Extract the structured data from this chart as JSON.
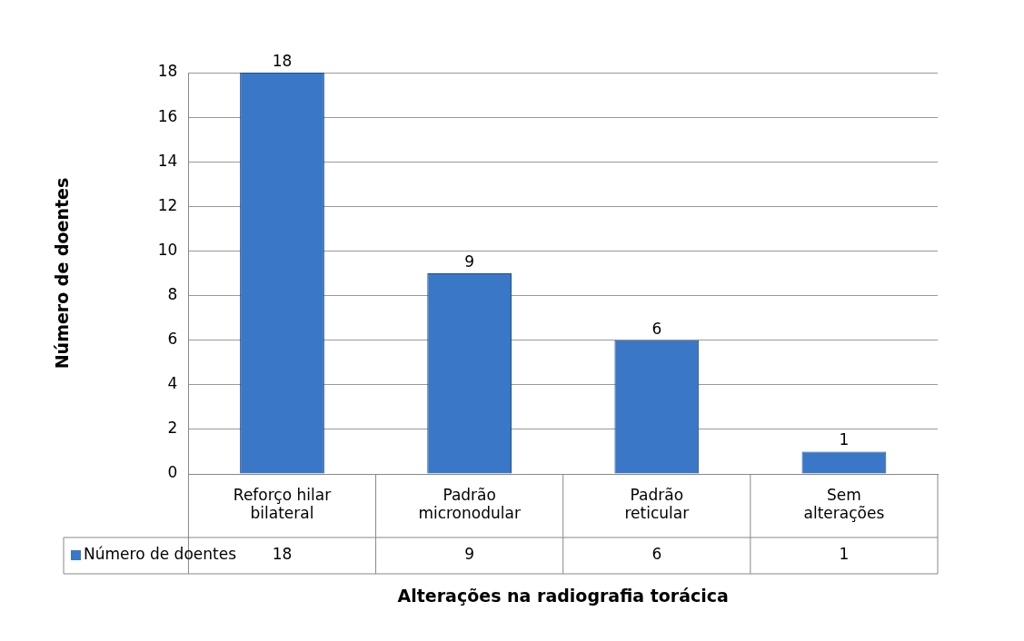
{
  "chart_data": {
    "type": "bar",
    "xlabel": "Alterações na radiografia torácica",
    "ylabel": "Número de doentes",
    "categories": [
      "Reforço hilar bilateral",
      "Padrão micronodular",
      "Padrão reticular",
      "Sem alterações"
    ],
    "series": [
      {
        "name": "Número de doentes",
        "color": "#3a77c6",
        "values": [
          18,
          9,
          6,
          1
        ],
        "value_labels": [
          "18",
          "9",
          "6",
          "1"
        ]
      }
    ],
    "ylim": [
      0,
      18
    ],
    "yticks": [
      0,
      2,
      4,
      6,
      8,
      10,
      12,
      14,
      16,
      18
    ],
    "grid": "y",
    "legend": "bottom",
    "annotations": [
      "18",
      "9",
      "6",
      "1"
    ]
  }
}
